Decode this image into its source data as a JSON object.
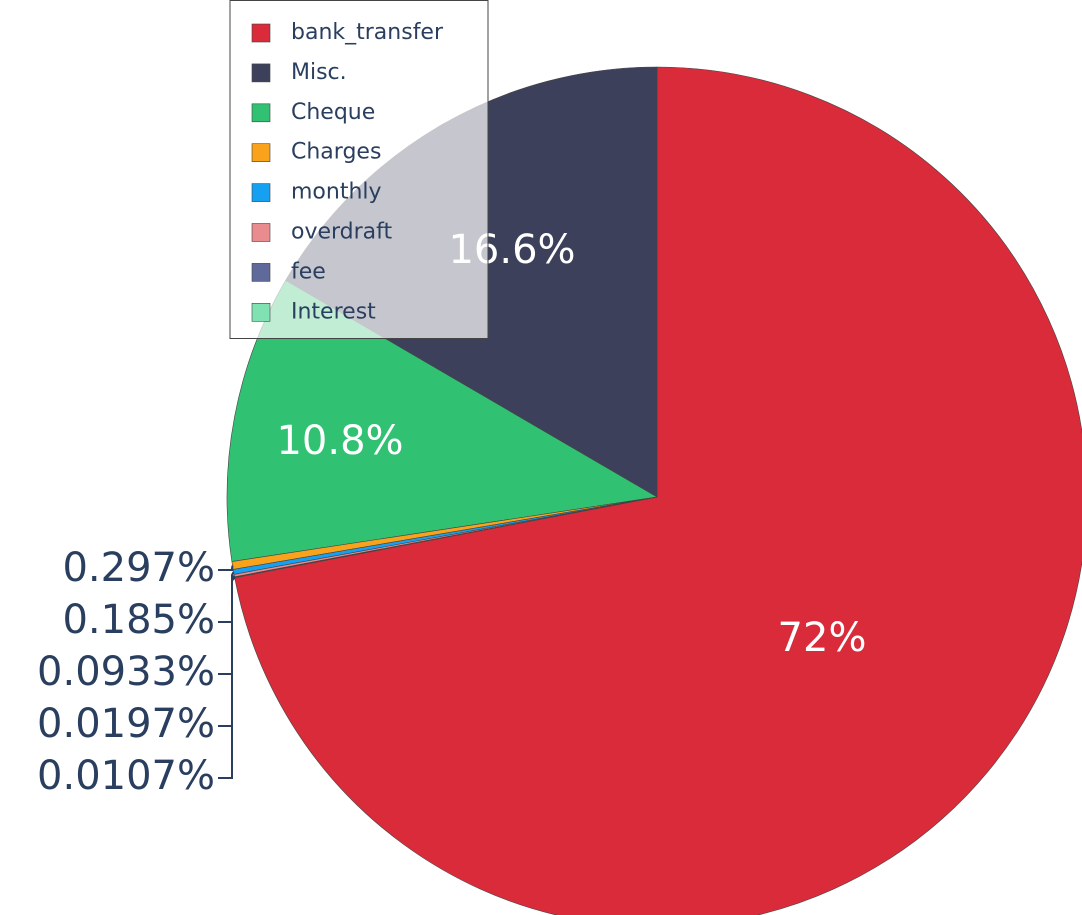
{
  "chart_data": {
    "type": "pie",
    "labels": [
      "bank_transfer",
      "Misc.",
      "Cheque",
      "Charges",
      "monthly",
      "overdraft",
      "fee",
      "Interest"
    ],
    "values": [
      72,
      16.6,
      10.8,
      0.297,
      0.185,
      0.0933,
      0.0197,
      0.0107
    ],
    "value_labels": [
      "72%",
      "16.6%",
      "10.8%",
      "0.297%",
      "0.185%",
      "0.0933%",
      "0.0197%",
      "0.0107%"
    ],
    "colors": [
      "#d92b3a",
      "#3d405b",
      "#31c172",
      "#f8a31b",
      "#16a0f2",
      "#e98b8f",
      "#5f6a9b",
      "#80e1b2"
    ]
  }
}
